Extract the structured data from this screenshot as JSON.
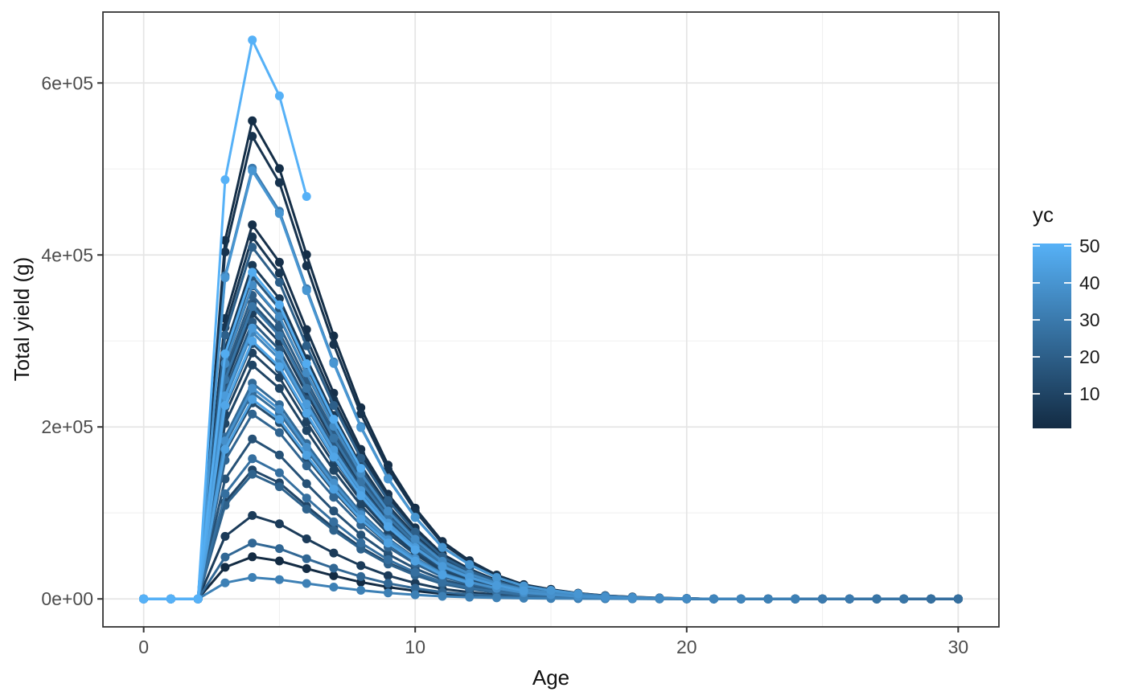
{
  "chart_data": {
    "type": "line",
    "title": "",
    "xlabel": "Age",
    "ylabel": "Total yield (g)",
    "x_axis": {
      "major_ticks": [
        0,
        10,
        20,
        30
      ],
      "minor_gridlines": [
        5,
        15,
        25
      ],
      "lim": [
        -1.5,
        31.5
      ]
    },
    "y_axis": {
      "major_tick_values": [
        0,
        200000,
        400000,
        600000
      ],
      "major_tick_labels": [
        "0e+00",
        "2e+05",
        "4e+05",
        "6e+05"
      ],
      "minor_gridlines": [
        100000,
        300000,
        500000
      ],
      "lim": [
        -32500,
        682500
      ]
    },
    "grid": true,
    "marker": "circle",
    "x_meaning": "age in years; each series value index corresponds to integer Age starting at 0",
    "legend": {
      "title": "yc",
      "type": "colorbar",
      "position": "right",
      "breaks": [
        50,
        40,
        30,
        20,
        10
      ],
      "limits": [
        1,
        50
      ],
      "color_low": "#132B43",
      "color_high": "#56B1F7"
    },
    "series": [
      {
        "yc": 1,
        "values": [
          0,
          0,
          0,
          36750,
          49000,
          44100,
          35280,
          26950,
          19600,
          13720,
          9310,
          5880,
          3920,
          2450,
          1470,
          980,
          588,
          343,
          196,
          98,
          49,
          0,
          0,
          0,
          0,
          0,
          0,
          0,
          0,
          0,
          0
        ]
      },
      {
        "yc": 2,
        "values": [
          0,
          0,
          0,
          417000,
          556000,
          500400,
          400320,
          305800,
          222400,
          155680,
          105640,
          66720,
          44480,
          27800,
          16680,
          11120,
          6672,
          3892,
          2224,
          1112,
          556,
          0,
          0,
          0,
          0,
          0,
          0,
          0,
          0,
          0,
          0
        ]
      },
      {
        "yc": 3,
        "values": [
          0,
          0,
          0,
          326250,
          435000,
          391500,
          313200,
          239250,
          174000,
          121800,
          82650,
          52200,
          34800,
          21750,
          13050,
          8700,
          5220,
          3045,
          1740,
          870,
          435,
          0,
          0,
          0,
          0,
          0,
          0,
          0,
          0,
          0,
          0
        ]
      },
      {
        "yc": 4,
        "values": [
          0,
          0,
          0,
          403500,
          538000,
          484200,
          387360,
          295900,
          215200,
          150640,
          102220,
          64560,
          43040,
          26900,
          16140,
          10760,
          6456,
          3766,
          2152,
          1076,
          538,
          0,
          0,
          0,
          0,
          0,
          0,
          0,
          0,
          0,
          0
        ]
      },
      {
        "yc": 5,
        "values": [
          0,
          0,
          0,
          315750,
          421000,
          378900,
          303120,
          231550,
          168400,
          117880,
          79990,
          50520,
          33680,
          21050,
          12630,
          8420,
          5052,
          2947,
          1684,
          842,
          421,
          0,
          0,
          0,
          0,
          0,
          0,
          0,
          0,
          0,
          0
        ]
      },
      {
        "yc": 6,
        "values": [
          0,
          0,
          0,
          291000,
          388000,
          349200,
          279360,
          213400,
          155200,
          108640,
          73720,
          46560,
          31040,
          19400,
          11640,
          7760,
          4656,
          2716,
          1552,
          776,
          388,
          0,
          0,
          0,
          0,
          0,
          0,
          0,
          0,
          0,
          0
        ]
      },
      {
        "yc": 7,
        "values": [
          0,
          0,
          0,
          72750,
          97000,
          87300,
          69840,
          53350,
          38800,
          27160,
          18430,
          11640,
          7760,
          4850,
          2910,
          1940,
          1164,
          679,
          388,
          194,
          97,
          0,
          0,
          0,
          0,
          0,
          0,
          0,
          0,
          0,
          0
        ]
      },
      {
        "yc": 8,
        "values": [
          0,
          0,
          0,
          249000,
          332000,
          298800,
          239040,
          182600,
          132800,
          92960,
          63080,
          39840,
          26560,
          16600,
          9960,
          6640,
          3984,
          2324,
          1328,
          664,
          332,
          0,
          0,
          0,
          0,
          0,
          0,
          0,
          0,
          0,
          0
        ]
      },
      {
        "yc": 9,
        "values": [
          0,
          0,
          0,
          214500,
          286000,
          257400,
          205920,
          157300,
          114400,
          80080,
          54340,
          34320,
          22880,
          14300,
          8580,
          5720,
          3432,
          2002,
          1144,
          572,
          286,
          0,
          0,
          0,
          0,
          0,
          0,
          0,
          0,
          0,
          0
        ]
      },
      {
        "yc": 10,
        "values": [
          0,
          0,
          0,
          204000,
          272000,
          244800,
          195840,
          149600,
          108800,
          76160,
          51680,
          32640,
          21760,
          13600,
          8160,
          5440,
          3264,
          1904,
          1088,
          544,
          272,
          0,
          0,
          0,
          0,
          0,
          0,
          0,
          0,
          0,
          0
        ]
      },
      {
        "yc": 11,
        "values": [
          0,
          0,
          0,
          112500,
          150000,
          135000,
          108000,
          82500,
          60000,
          42000,
          28500,
          18000,
          12000,
          7500,
          4500,
          3000,
          1800,
          1050,
          600,
          300,
          150,
          0,
          0,
          0,
          0,
          0,
          0,
          0,
          0,
          0,
          0
        ]
      },
      {
        "yc": 12,
        "values": [
          0,
          0,
          0,
          273000,
          364000,
          327600,
          262080,
          200200,
          145600,
          101920,
          69160,
          43680,
          29120,
          18200,
          10920,
          7280,
          4368,
          2548,
          1456,
          728,
          364,
          0,
          0,
          0,
          0,
          0,
          0,
          0,
          0,
          0,
          0
        ]
      },
      {
        "yc": 13,
        "values": [
          0,
          0,
          0,
          171000,
          228000,
          205200,
          164160,
          125400,
          91200,
          63840,
          43320,
          27360,
          18240,
          11400,
          6840,
          4560,
          2736,
          1596,
          912,
          456,
          228,
          0,
          0,
          0,
          0,
          0,
          0,
          0,
          0,
          0,
          0
        ]
      },
      {
        "yc": 14,
        "values": [
          0,
          0,
          0,
          222750,
          297000,
          267300,
          213840,
          163350,
          118800,
          83160,
          56430,
          35640,
          23760,
          14850,
          8910,
          5940,
          3564,
          2079,
          1188,
          594,
          297,
          0,
          0,
          0,
          0,
          0,
          0,
          0,
          0,
          0,
          0
        ]
      },
      {
        "yc": 15,
        "values": [
          0,
          0,
          0,
          139500,
          186000,
          167400,
          133920,
          102300,
          74400,
          52080,
          35340,
          22320,
          14880,
          9300,
          5580,
          3720,
          2232,
          1302,
          744,
          372,
          186,
          0,
          0,
          0,
          0,
          0,
          0,
          0,
          0,
          0,
          0
        ]
      },
      {
        "yc": 16,
        "values": [
          0,
          0,
          0,
          258000,
          344000,
          309600,
          247680,
          189200,
          137600,
          96320,
          65360,
          41280,
          27520,
          17200,
          10320,
          6880,
          4128,
          2408,
          1376,
          688,
          344,
          0,
          0,
          0,
          0,
          0,
          0,
          0,
          0,
          0,
          0
        ]
      },
      {
        "yc": 17,
        "values": [
          0,
          0,
          0,
          281250,
          375000,
          337500,
          270000,
          206250,
          150000,
          105000,
          71250,
          45000,
          30000,
          18750,
          11250,
          7500,
          4500,
          2625,
          1500,
          750,
          375,
          0,
          0,
          0,
          0,
          0,
          0,
          0,
          0,
          0,
          0
        ]
      },
      {
        "yc": 18,
        "values": [
          0,
          0,
          0,
          241500,
          322000,
          289800,
          231840,
          177100,
          128800,
          90160,
          61180,
          38640,
          25760,
          16100,
          9660,
          6440,
          3864,
          2254,
          1288,
          644,
          322,
          0,
          0,
          0,
          0,
          0,
          0,
          0,
          0,
          0,
          0
        ]
      },
      {
        "yc": 19,
        "values": [
          0,
          0,
          0,
          264750,
          353000,
          317700,
          254160,
          194150,
          141200,
          98840,
          67070,
          42360,
          28240,
          17650,
          10590,
          7060,
          4236,
          2471,
          1412,
          706,
          353,
          0,
          0,
          0,
          0,
          0,
          0,
          0,
          0,
          0,
          0
        ]
      },
      {
        "yc": 20,
        "values": [
          0,
          0,
          0,
          306750,
          409000,
          368100,
          294480,
          224950,
          163600,
          114520,
          77710,
          49080,
          32720,
          20450,
          12270,
          8180,
          4908,
          2863,
          1636,
          818,
          409,
          0,
          0,
          0,
          0,
          0,
          0,
          0,
          0,
          0,
          0
        ]
      },
      {
        "yc": 21,
        "values": [
          0,
          0,
          0,
          108750,
          145000,
          130500,
          104400,
          79750,
          58000,
          40600,
          27550,
          17400,
          11600,
          7250,
          4350,
          2900,
          1740,
          1015,
          580,
          290,
          145,
          0,
          0,
          0,
          0,
          0,
          0,
          0,
          0,
          0,
          0
        ]
      },
      {
        "yc": 22,
        "values": [
          0,
          0,
          0,
          161250,
          215000,
          193500,
          154800,
          118250,
          86000,
          60200,
          40850,
          25800,
          17200,
          10750,
          6450,
          4300,
          2580,
          1505,
          860,
          430,
          215,
          0,
          0,
          0,
          0,
          0,
          0,
          0,
          0,
          0,
          0
        ]
      },
      {
        "yc": 23,
        "values": [
          0,
          0,
          0,
          48750,
          65000,
          58500,
          46800,
          35750,
          26000,
          18200,
          12350,
          7800,
          5200,
          3250,
          1950,
          1300,
          780,
          455,
          260,
          130,
          65,
          0,
          0,
          0,
          0,
          0,
          0,
          0,
          0,
          0,
          0
        ]
      },
      {
        "yc": 24,
        "values": [
          0,
          0,
          0,
          188250,
          251000,
          225900,
          180720,
          138050,
          100400,
          70280,
          47690,
          30120,
          20080,
          12550,
          7530,
          5020,
          3012,
          1757,
          1004,
          502,
          251,
          0,
          0,
          0,
          0,
          0,
          0,
          0,
          0,
          0,
          0
        ]
      },
      {
        "yc": 25,
        "values": [
          0,
          0,
          0,
          180000,
          240000,
          216000,
          172800,
          132000,
          96000,
          67200,
          45600,
          28800,
          19200,
          12000,
          7200,
          4800,
          2880,
          1680,
          960,
          480,
          240,
          0,
          0,
          0,
          0,
          0,
          0,
          0,
          0,
          0,
          0
        ]
      },
      {
        "yc": 26,
        "values": [
          0,
          0,
          0,
          122250,
          163000,
          146700,
          117360,
          89650,
          65200,
          45640,
          30970,
          19560,
          13040,
          8150,
          4890,
          3260,
          1956,
          1141,
          652,
          326,
          163,
          0,
          0,
          0,
          0,
          0,
          0,
          0,
          0,
          0,
          0
        ]
      },
      {
        "yc": 28,
        "values": [
          0,
          0,
          0,
          255000,
          340000,
          306000,
          244800,
          187000,
          136000,
          95200,
          64600,
          40800,
          27200,
          17000,
          10200,
          6800,
          4080,
          2380,
          1360,
          680,
          340,
          0,
          0,
          0,
          0,
          0,
          0,
          0,
          0
        ]
      },
      {
        "yc": 30,
        "values": [
          0,
          0,
          0,
          375750,
          501000,
          450900,
          360720,
          275550,
          200400,
          140280,
          95190,
          60120,
          40080,
          25050,
          15030,
          10020,
          6012,
          3507,
          2004,
          1002,
          501,
          0,
          0,
          0,
          0,
          0,
          0
        ]
      },
      {
        "yc": 32,
        "values": [
          0,
          0,
          0,
          18750,
          25000,
          22500,
          18000,
          13750,
          10000,
          7000,
          4750,
          3000,
          2000,
          1250,
          750,
          500,
          300,
          175,
          100,
          50,
          25,
          0,
          0,
          0,
          0
        ]
      },
      {
        "yc": 34,
        "values": [
          0,
          0,
          0,
          232500,
          310000,
          279000,
          223200,
          170500,
          124000,
          86800,
          58900,
          37200,
          24800,
          15500,
          9300,
          6200,
          3720,
          2170,
          1240,
          620,
          310,
          0,
          0
        ]
      },
      {
        "yc": 36,
        "values": [
          0,
          0,
          0,
          273750,
          365000,
          328500,
          262800,
          200750,
          146000,
          102200,
          69350,
          43800,
          29200,
          18250,
          10950,
          7300,
          4380,
          2555,
          1460,
          730,
          365
        ]
      },
      {
        "yc": 38,
        "values": [
          0,
          0,
          0,
          183750,
          245000,
          220500,
          176400,
          134750,
          98000,
          68600,
          46550,
          29400,
          19600,
          12250,
          7350,
          4900,
          2940,
          1715,
          980
        ]
      },
      {
        "yc": 40,
        "values": [
          0,
          0,
          0,
          373500,
          498000,
          448200,
          358560,
          273900,
          199200,
          139440,
          94620,
          59760,
          39840,
          24900,
          14940,
          9960,
          5976
        ]
      },
      {
        "yc": 42,
        "values": [
          0,
          0,
          0,
          236250,
          315000,
          283500,
          226800,
          173250,
          126000,
          88200,
          59850,
          37800,
          25200,
          15750,
          9450
        ]
      },
      {
        "yc": 44,
        "values": [
          0,
          0,
          0,
          174000,
          232000,
          208800,
          167040,
          127600,
          92800,
          64960,
          44080,
          27840,
          18560
        ]
      },
      {
        "yc": 46,
        "values": [
          0,
          0,
          0,
          225000,
          300000,
          270000,
          216000,
          165000,
          120000,
          84000,
          57000
        ]
      },
      {
        "yc": 48,
        "values": [
          0,
          0,
          0,
          285000,
          380000,
          342000,
          273600,
          209000,
          152000
        ]
      },
      {
        "yc": 50,
        "values": [
          0,
          0,
          0,
          487500,
          650000,
          585000,
          468000
        ]
      }
    ]
  }
}
